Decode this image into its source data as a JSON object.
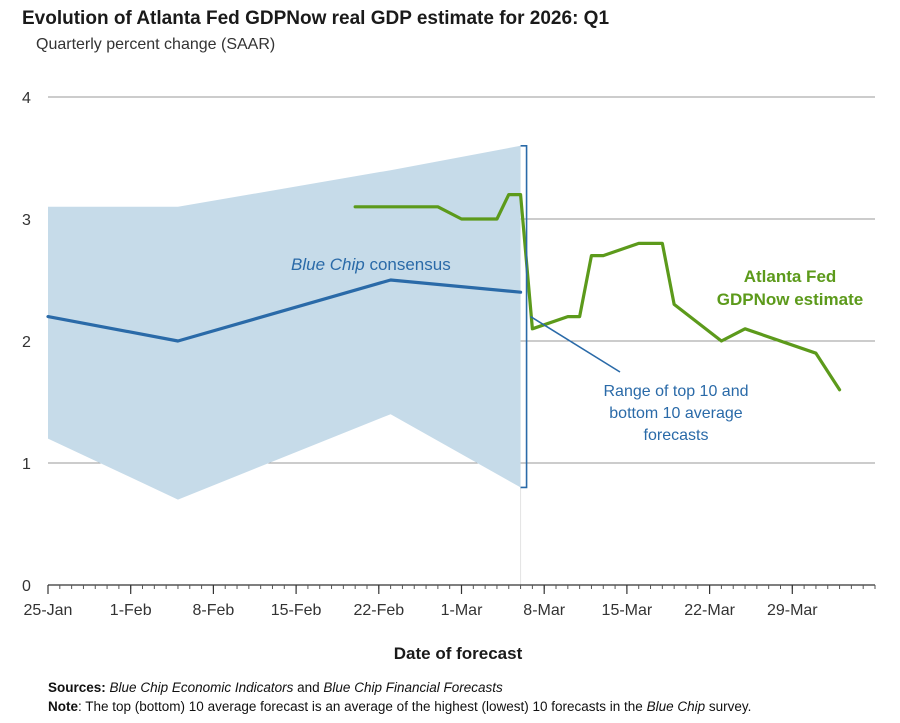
{
  "title": "Evolution of Atlanta Fed GDPNow real GDP estimate for 2026: Q1",
  "subtitle": "Quarterly percent change (SAAR)",
  "chart_data": {
    "type": "line",
    "title": "Evolution of Atlanta Fed GDPNow real GDP estimate for 2026: Q1",
    "subtitle": "Quarterly percent change (SAAR)",
    "xlabel": "Date of forecast",
    "ylabel": "",
    "ylim": [
      0,
      4
    ],
    "xlim": [
      "2026-01-25",
      "2026-04-05"
    ],
    "yticks": [
      0,
      1,
      2,
      3,
      4
    ],
    "xticks": [
      {
        "date": "2026-01-25",
        "label": "25-Jan"
      },
      {
        "date": "2026-02-01",
        "label": "1-Feb"
      },
      {
        "date": "2026-02-08",
        "label": "8-Feb"
      },
      {
        "date": "2026-02-15",
        "label": "15-Feb"
      },
      {
        "date": "2026-02-22",
        "label": "22-Feb"
      },
      {
        "date": "2026-03-01",
        "label": "1-Mar"
      },
      {
        "date": "2026-03-08",
        "label": "8-Mar"
      },
      {
        "date": "2026-03-15",
        "label": "15-Mar"
      },
      {
        "date": "2026-03-22",
        "label": "22-Mar"
      },
      {
        "date": "2026-03-29",
        "label": "29-Mar"
      }
    ],
    "grid": true,
    "series": [
      {
        "name": "Atlanta Fed GDPNow estimate",
        "color": "#5c9a1b",
        "points": [
          {
            "x": "2026-02-20",
            "y": 3.1
          },
          {
            "x": "2026-02-24",
            "y": 3.1
          },
          {
            "x": "2026-02-26",
            "y": 3.1
          },
          {
            "x": "2026-02-27",
            "y": 3.1
          },
          {
            "x": "2026-03-01",
            "y": 3.0
          },
          {
            "x": "2026-03-02",
            "y": 3.0
          },
          {
            "x": "2026-03-02",
            "y": 3.0
          },
          {
            "x": "2026-03-04",
            "y": 3.0
          },
          {
            "x": "2026-03-05",
            "y": 3.2
          },
          {
            "x": "2026-03-06",
            "y": 3.2
          },
          {
            "x": "2026-03-07",
            "y": 2.1
          },
          {
            "x": "2026-03-10",
            "y": 2.2
          },
          {
            "x": "2026-03-11",
            "y": 2.2
          },
          {
            "x": "2026-03-12",
            "y": 2.7
          },
          {
            "x": "2026-03-13",
            "y": 2.7
          },
          {
            "x": "2026-03-16",
            "y": 2.8
          },
          {
            "x": "2026-03-18",
            "y": 2.8
          },
          {
            "x": "2026-03-19",
            "y": 2.3
          },
          {
            "x": "2026-03-23",
            "y": 2.0
          },
          {
            "x": "2026-03-25",
            "y": 2.1
          },
          {
            "x": "2026-03-31",
            "y": 1.9
          },
          {
            "x": "2026-04-02",
            "y": 1.6
          }
        ]
      },
      {
        "name": "Blue Chip consensus",
        "color": "#2a6aa8",
        "points": [
          {
            "x": "2026-01-25",
            "y": 2.2
          },
          {
            "x": "2026-02-05",
            "y": 2.0
          },
          {
            "x": "2026-02-23",
            "y": 2.5
          },
          {
            "x": "2026-03-06",
            "y": 2.4
          }
        ]
      }
    ],
    "range_band": {
      "label": "Range of top 10 and bottom 10 average forecasts",
      "color": "#c6dbe9",
      "upper": [
        {
          "x": "2026-01-25",
          "y": 3.1
        },
        {
          "x": "2026-02-05",
          "y": 3.1
        },
        {
          "x": "2026-02-23",
          "y": 3.4
        },
        {
          "x": "2026-03-06",
          "y": 3.6
        }
      ],
      "lower": [
        {
          "x": "2026-01-25",
          "y": 1.2
        },
        {
          "x": "2026-02-05",
          "y": 0.7
        },
        {
          "x": "2026-02-23",
          "y": 1.4
        },
        {
          "x": "2026-03-06",
          "y": 0.8
        }
      ]
    },
    "annotations": {
      "blue_chip_label_prefix": "Blue Chip",
      "blue_chip_label_suffix": " consensus",
      "gdpnow_label_line1": "Atlanta Fed",
      "gdpnow_label_line2": "GDPNow estimate",
      "range_label_lines": [
        "Range of top 10 and",
        "bottom 10 average",
        "forecasts"
      ]
    }
  },
  "notes": {
    "sources_label": "Sources:",
    "sources_text_1": "Blue Chip Economic Indicators",
    "sources_text_2": " and ",
    "sources_text_3": "Blue Chip Financial Forecasts",
    "note_label": "Note",
    "note_text_1": ": The top (bottom) 10 average forecast is an average of the highest (lowest) 10 forecasts in the ",
    "note_text_2": "Blue Chip",
    "note_text_3": " survey."
  }
}
